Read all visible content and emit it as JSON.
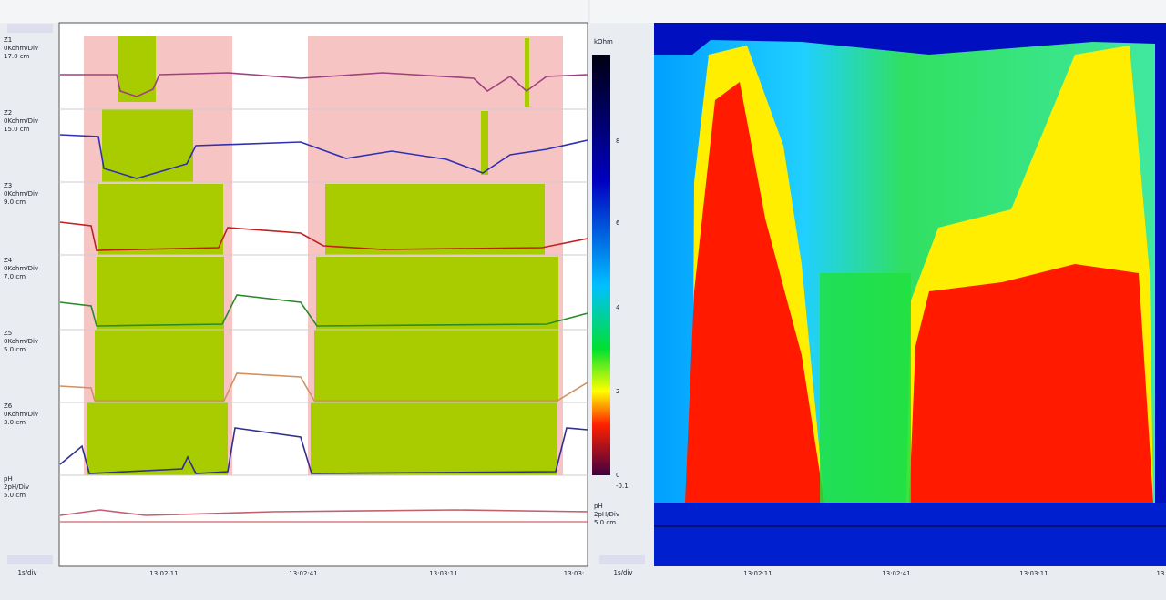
{
  "left_panel": {
    "channels": [
      {
        "name": "Z1",
        "scale": "0Kohm/Div",
        "position": "17.0 cm"
      },
      {
        "name": "Z2",
        "scale": "0Kohm/Div",
        "position": "15.0 cm"
      },
      {
        "name": "Z3",
        "scale": "0Kohm/Div",
        "position": "9.0 cm"
      },
      {
        "name": "Z4",
        "scale": "0Kohm/Div",
        "position": "7.0 cm"
      },
      {
        "name": "Z5",
        "scale": "0Kohm/Div",
        "position": "5.0 cm"
      },
      {
        "name": "Z6",
        "scale": "0Kohm/Div",
        "position": "3.0 cm"
      },
      {
        "name": "pH",
        "scale": "2pH/Div",
        "position": "5.0 cm"
      }
    ],
    "time_scale": "1s/div",
    "time_labels": [
      "13:02:11",
      "13:02:41",
      "13:03:11",
      "13:03:"
    ]
  },
  "right_panel": {
    "colorbar": {
      "title": "kOhm",
      "ticks": [
        "8",
        "6",
        "4",
        "2",
        "0",
        "-0.1"
      ]
    },
    "channel": {
      "name": "pH",
      "scale": "2pH/Div",
      "position": "5.0 cm"
    },
    "time_scale": "1s/div",
    "time_labels": [
      "13:02:11",
      "13:02:41",
      "13:03:11",
      "13"
    ]
  }
}
